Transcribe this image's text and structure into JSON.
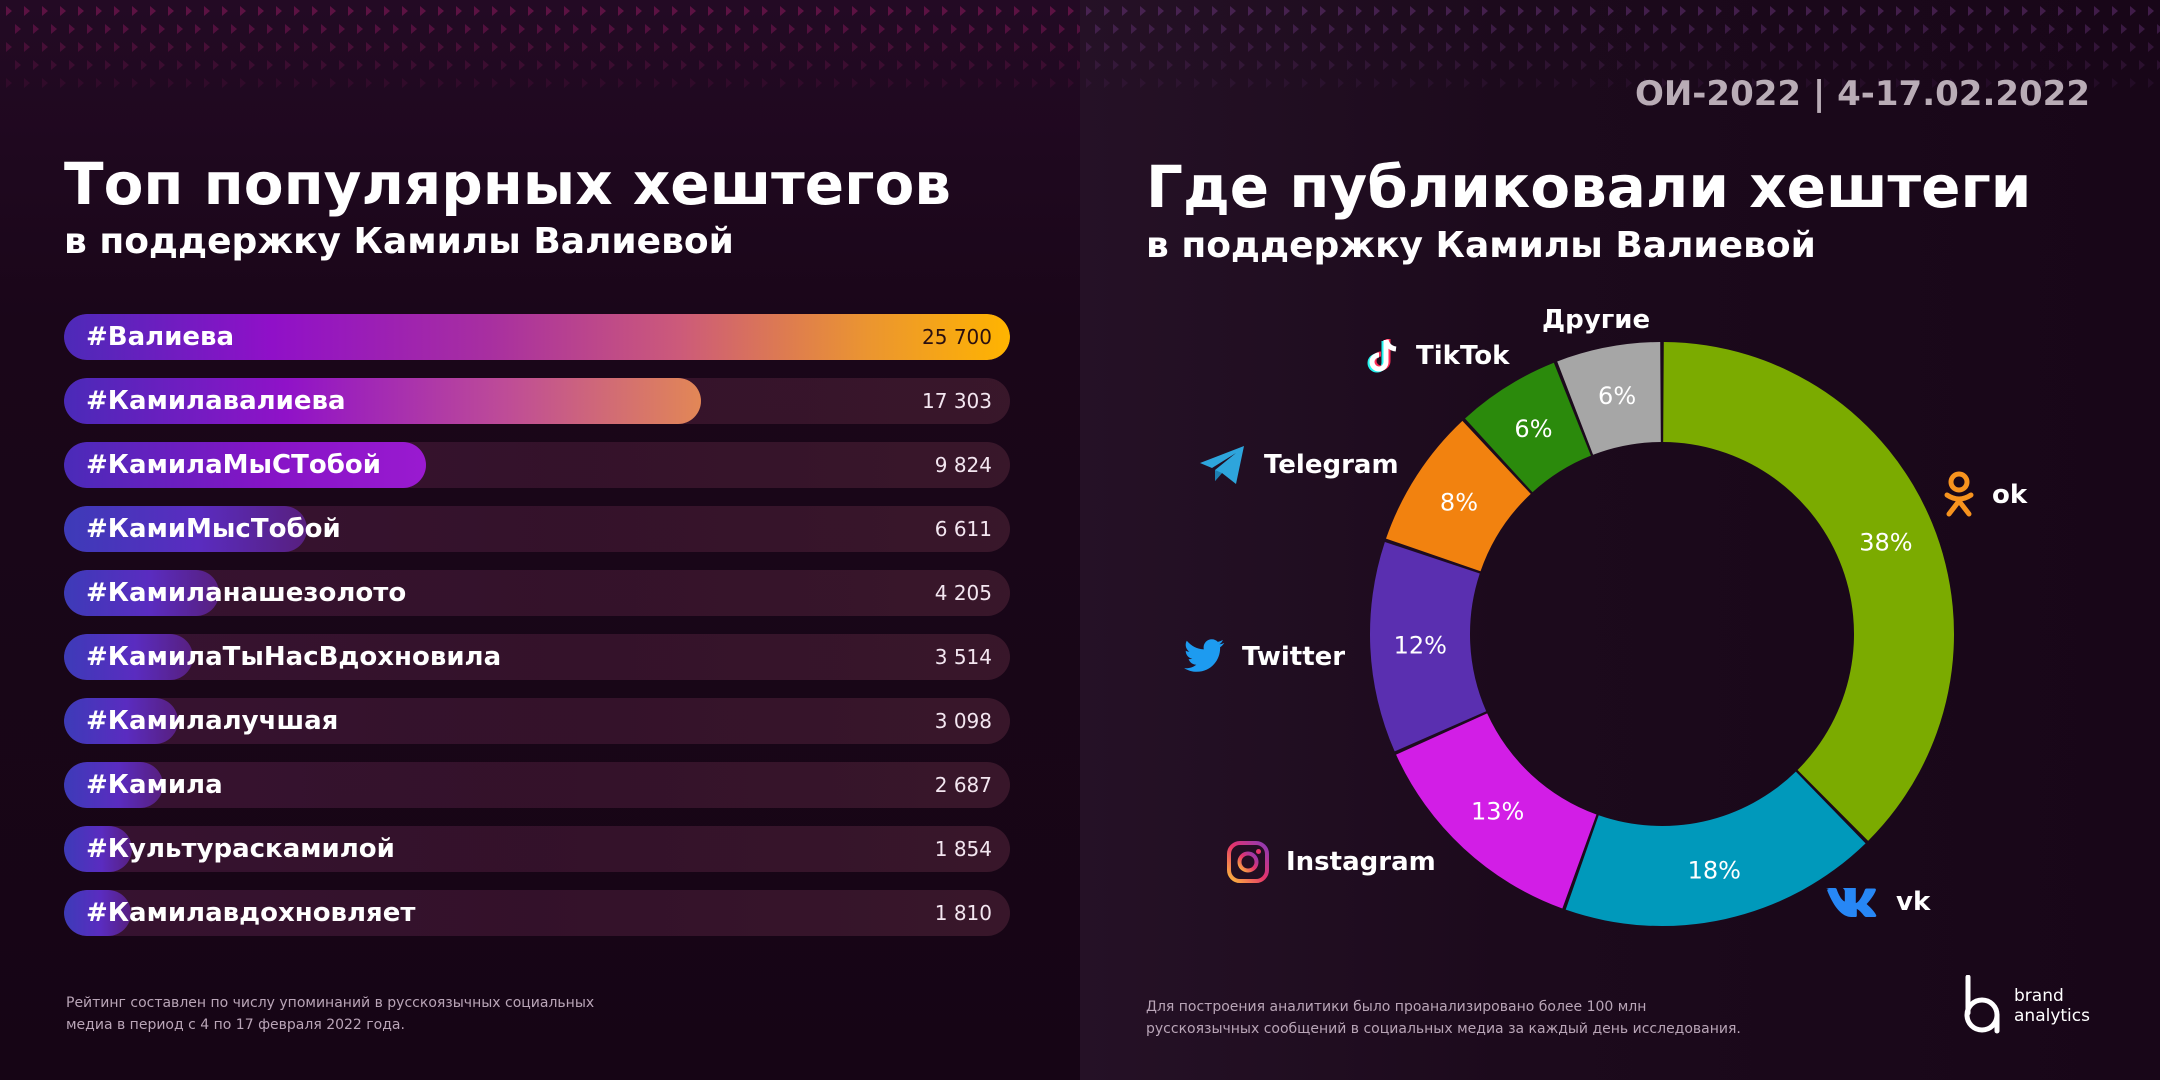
{
  "left": {
    "title": "Топ популярных хештегов",
    "subtitle": "в поддержку Камилы Валиевой",
    "footnote_line1": "Рейтинг составлен по числу упоминаний в русскоязычных социальных",
    "footnote_line2": "медиа в период с 4 по 17 февраля 2022 года."
  },
  "right": {
    "date": "ОИ-2022 | 4-17.02.2022",
    "title": "Где публиковали хештеги",
    "subtitle": "в поддержку Камилы Валиевой",
    "footnote_line1": "Для построения аналитики было проанализировано более 100 млн",
    "footnote_line2": "русскоязычных сообщений в социальных медиа за каждый день исследования."
  },
  "brand": {
    "line1": "brand",
    "line2": "analytics"
  },
  "chart_data": [
    {
      "type": "bar",
      "orientation": "horizontal",
      "title": "Топ популярных хештегов",
      "subtitle": "в поддержку Камилы Валиевой",
      "categories": [
        "#Валиева",
        "#Камилавалиева",
        "#КамилаМыСТобой",
        "#КамиМысТобой",
        "#Камиланашезолото",
        "#КамилаТыНасВдохновила",
        "#Камилалучшая",
        "#Камила",
        "#Культураскамилой",
        "#Камилавдохновляет"
      ],
      "values": [
        25700,
        17303,
        9824,
        6611,
        4205,
        3514,
        3098,
        2687,
        1854,
        1810
      ],
      "value_labels": [
        "25 700",
        "17 303",
        "9 824",
        "6 611",
        "4 205",
        "3 514",
        "3 098",
        "2 687",
        "1 854",
        "1 810"
      ],
      "xlim": [
        0,
        25700
      ]
    },
    {
      "type": "pie",
      "donut": true,
      "title": "Где публиковали хештеги",
      "subtitle": "в поддержку Камилы Валиевой",
      "slices": [
        {
          "name": "ok",
          "value": 38,
          "label": "38%",
          "color": "#7bab00",
          "icon": "odnoklassniki-icon"
        },
        {
          "name": "vk",
          "value": 18,
          "label": "18%",
          "color": "#0099bb",
          "icon": "vk-icon"
        },
        {
          "name": "Instagram",
          "value": 13,
          "label": "13%",
          "color": "#d21ee6",
          "icon": "instagram-icon"
        },
        {
          "name": "Twitter",
          "value": 12,
          "label": "12%",
          "color": "#5a2fb0",
          "icon": "twitter-icon"
        },
        {
          "name": "Telegram",
          "value": 8,
          "label": "8%",
          "color": "#f2820f",
          "icon": "telegram-icon"
        },
        {
          "name": "TikTok",
          "value": 6,
          "label": "6%",
          "color": "#2b8a0c",
          "icon": "tiktok-icon"
        },
        {
          "name": "Другие",
          "value": 6,
          "label": "6%",
          "color": "#a6a6a6",
          "icon": ""
        }
      ]
    }
  ]
}
